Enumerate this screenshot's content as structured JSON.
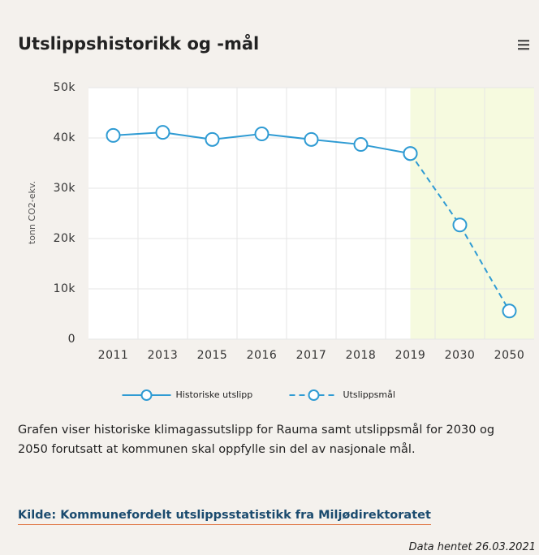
{
  "chart_data": {
    "type": "line",
    "title": "Utslippshistorikk og -mål",
    "y_axis_label": "tonn CO2-ekv.",
    "categories": [
      "2011",
      "2013",
      "2015",
      "2016",
      "2017",
      "2018",
      "2019",
      "2030",
      "2050"
    ],
    "series": [
      {
        "name": "Historiske utslipp",
        "color": "#2f9bd3",
        "dash": "solid",
        "values": [
          40500,
          41100,
          39700,
          40800,
          39700,
          38700,
          36900,
          null,
          null
        ]
      },
      {
        "name": "Utslippsmål",
        "color": "#2f9bd3",
        "dash": "dash",
        "values": [
          null,
          null,
          null,
          null,
          null,
          null,
          36900,
          22700,
          5600
        ]
      }
    ],
    "ylim": [
      0,
      50000
    ],
    "yticks": [
      0,
      {
        "value": 10000,
        "label": "10k"
      },
      {
        "value": 20000,
        "label": "20k"
      },
      {
        "value": 30000,
        "label": "30k"
      },
      {
        "value": 40000,
        "label": "40k"
      },
      {
        "value": 50000,
        "label": "50k"
      }
    ],
    "grid": true,
    "legend": "bottom",
    "plot_band": {
      "from_index": 6,
      "color": "#f6fadf"
    }
  },
  "description": "Grafen viser historiske klimagassutslipp for Rauma samt utslippsmål for 2030 og 2050 forutsatt at kommunen skal oppfylle sin del av nasjonale mål.",
  "source_link": "Kilde: Kommunefordelt utslippsstatistikk fra Miljødirektoratet",
  "retrieved": "Data hentet 26.03.2021"
}
